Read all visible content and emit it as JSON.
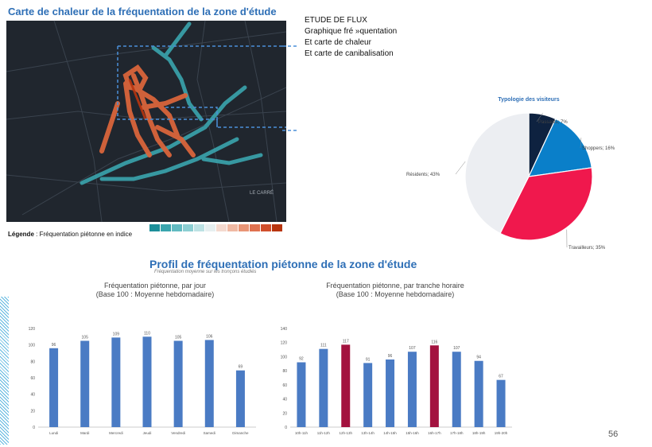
{
  "flux_note": {
    "line1": "ETUDE DE FLUX",
    "line2": "Graphique fré »quentation",
    "line3": "Et carte de chaleur",
    "line4": "Et carte de canibalisation"
  },
  "heatmap": {
    "title": "Carte de chaleur de la fréquentation de la zone d'étude",
    "legend_bold": "Légende",
    "legend_rest": " : Fréquentation piétonne en indice",
    "map_label": "LE CARRÉ",
    "scale_colors": [
      "#1c8f9a",
      "#3aa5ae",
      "#62bbc2",
      "#8ccfd3",
      "#bde2e4",
      "#e6eff0",
      "#f4d9cf",
      "#f0b9a3",
      "#e99576",
      "#e0714f",
      "#d14f2c",
      "#b8350f"
    ]
  },
  "profile": {
    "title": "Profil de fréquentation piétonne de la zone d'étude",
    "subtitle": "Fréquentation moyenne sur les tronçons étudiés"
  },
  "page_number": "56",
  "colors": {
    "bar_blue": "#4a7bc4",
    "bar_highlight": "#a3123f",
    "title_blue": "#2e6fb6",
    "pie_passants": "#0e2240",
    "pie_shoppers": "#0a7fc9",
    "pie_travailleurs": "#f0184d",
    "pie_residents": "#eceef2"
  },
  "chart_data": [
    {
      "type": "pie",
      "title": "Typologie des visiteurs",
      "slices": [
        {
          "label": "Passants; 7%",
          "value": 7,
          "color": "#0e2240"
        },
        {
          "label": "Shoppers; 16%",
          "value": 16,
          "color": "#0a7fc9"
        },
        {
          "label": "Travailleurs; 35%",
          "value": 35,
          "color": "#f0184d"
        },
        {
          "label": "Résidents; 43%",
          "value": 43,
          "color": "#eceef2"
        }
      ]
    },
    {
      "type": "bar",
      "title": "Fréquentation piétonne, par jour",
      "subtitle": "(Base 100 : Moyenne hebdomadaire)",
      "categories": [
        "Lundi",
        "Mardi",
        "Mercredi",
        "Jeudi",
        "Vendredi",
        "Samedi",
        "Dimanche"
      ],
      "values": [
        96,
        105,
        109,
        110,
        105,
        106,
        69
      ],
      "ylim": [
        0,
        120
      ],
      "yticks": [
        0,
        20,
        40,
        60,
        80,
        100,
        120
      ],
      "highlight": []
    },
    {
      "type": "bar",
      "title": "Fréquentation piétonne, par tranche horaire",
      "subtitle": "(Base 100 : Moyenne hebdomadaire)",
      "categories": [
        "10h-11h",
        "11h-12h",
        "12h-13h",
        "13h-14h",
        "14h-15h",
        "15h-16h",
        "16h-17h",
        "17h-18h",
        "18h-19h",
        "19h-20h"
      ],
      "values": [
        92,
        111,
        117,
        91,
        96,
        107,
        116,
        107,
        94,
        67
      ],
      "ylim": [
        0,
        140
      ],
      "yticks": [
        0,
        20,
        40,
        60,
        80,
        100,
        120,
        140
      ],
      "highlight": [
        2,
        6
      ]
    }
  ]
}
